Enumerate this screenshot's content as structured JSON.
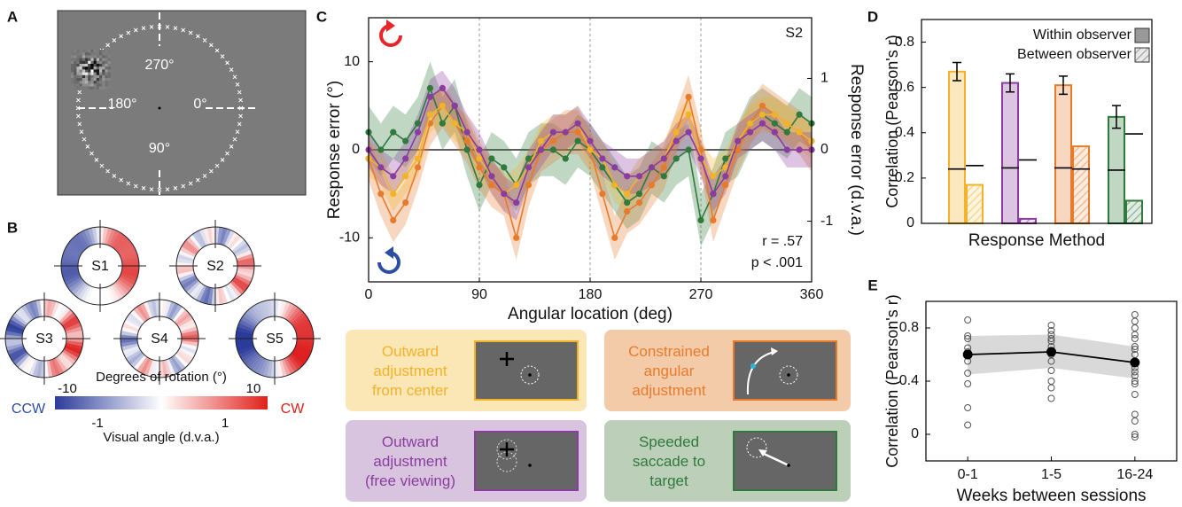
{
  "panel_labels": [
    "A",
    "B",
    "C",
    "D",
    "E"
  ],
  "stimulus": {
    "angle_labels": [
      "270°",
      "180°",
      "0°",
      "90°"
    ]
  },
  "maps": {
    "subjects": [
      "S1",
      "S2",
      "S3",
      "S4",
      "S5"
    ],
    "colorbar": {
      "title": "Degrees of rotation (°)",
      "ticks": [
        -10,
        10
      ],
      "left_label": "CCW",
      "right_label": "CW",
      "ticks2": [
        -1,
        1
      ],
      "label2": "Visual angle (d.v.a.)"
    }
  },
  "chart_data": [
    {
      "type": "line",
      "subject": "S2",
      "annotations": [
        "r = .57",
        "p < .001"
      ],
      "xlabel": "Angular location (deg)",
      "ylabel": "Response error (°)",
      "y2label": "Response error (d.v.a.)",
      "x": [
        0,
        10,
        20,
        30,
        40,
        50,
        60,
        70,
        80,
        90,
        100,
        110,
        120,
        130,
        140,
        150,
        160,
        170,
        180,
        190,
        200,
        210,
        220,
        230,
        240,
        250,
        260,
        270,
        280,
        290,
        300,
        310,
        320,
        330,
        340,
        350,
        360
      ],
      "xlim": [
        0,
        360
      ],
      "xticks": [
        0,
        90,
        180,
        270,
        360
      ],
      "ylim": [
        -15,
        15
      ],
      "yticks": [
        -10,
        0,
        10
      ],
      "y2lim": [
        -1.85,
        1.85
      ],
      "y2ticks": [
        -1,
        0,
        1
      ],
      "grid_x": true,
      "zero_line": true,
      "series": [
        {
          "name": "Outward adjustment from center",
          "color": "#f2b22a",
          "error": 2,
          "values": [
            -1,
            -2,
            -5,
            -3,
            -1,
            4,
            5,
            3,
            2,
            -1,
            -3,
            -5,
            -4,
            -2,
            1,
            2,
            2,
            3,
            0,
            -1,
            -4,
            -5,
            -3,
            -2,
            -1,
            2,
            4,
            -1,
            -3,
            -2,
            1,
            3,
            4,
            4,
            3,
            2,
            1
          ]
        },
        {
          "name": "Constrained angular adjustment",
          "color": "#e67c2b",
          "error": 2.5,
          "values": [
            -1,
            -5,
            -8,
            -6,
            -2,
            3,
            5,
            3,
            1,
            -2,
            -4,
            -5,
            -10,
            -4,
            0,
            1,
            2,
            2,
            0,
            -5,
            -10,
            -7,
            -6,
            -4,
            -2,
            2,
            6,
            0,
            -8,
            -4,
            0,
            3,
            5,
            4,
            3,
            2,
            0
          ]
        },
        {
          "name": "Outward adjustment (free viewing)",
          "color": "#8a3d9e",
          "error": 2,
          "values": [
            0,
            -2,
            -3,
            -1,
            2,
            6,
            7,
            5,
            2,
            0,
            -3,
            -5,
            -6,
            -2,
            0,
            2,
            2,
            3,
            1,
            -1,
            -2,
            -3,
            -3,
            -2,
            -1,
            1,
            2,
            -1,
            -5,
            -3,
            1,
            2,
            3,
            2,
            0,
            0,
            0
          ]
        },
        {
          "name": "Speeded saccade to target",
          "color": "#2f7a3c",
          "error": 3,
          "values": [
            2,
            0,
            2,
            1,
            3,
            7,
            3,
            5,
            0,
            -4,
            -1,
            -2,
            -4,
            -1,
            0,
            0,
            -1,
            1,
            0,
            -2,
            -4,
            -6,
            -5,
            -2,
            -3,
            -1,
            0,
            -8,
            -5,
            -1,
            0,
            3,
            4,
            3,
            2,
            4,
            3
          ]
        }
      ]
    },
    {
      "type": "bar",
      "xlabel": "Response Method",
      "ylabel": "Correlation (Pearson's r)",
      "categories": [
        null,
        null,
        null,
        null
      ],
      "category_colors": [
        "#f2b22a",
        "#8a3d9e",
        "#e67c2b",
        "#2f7a3c"
      ],
      "ylim": [
        0,
        0.9
      ],
      "yticks": [
        0,
        0.2,
        0.4,
        0.6,
        0.8
      ],
      "legend": "top-right",
      "series": [
        {
          "name": "Within observer",
          "color": "#999999",
          "pattern": "solid",
          "values": [
            0.67,
            0.62,
            0.61,
            0.47
          ],
          "error": [
            0.04,
            0.04,
            0.04,
            0.05
          ],
          "reference": [
            0.24,
            0.245,
            0.245,
            0.235
          ]
        },
        {
          "name": "Between observer",
          "color": "#999999",
          "pattern": "hatched",
          "values": [
            0.17,
            0.02,
            0.34,
            0.1
          ],
          "reference": [
            0.255,
            0.28,
            0.24,
            0.395
          ]
        }
      ]
    },
    {
      "type": "line",
      "xlabel": "Weeks between sessions",
      "ylabel": "Correlation (Pearson's r)",
      "categories": [
        "0-1",
        "1-5",
        "16-24"
      ],
      "ylim": [
        -0.2,
        1.0
      ],
      "yticks": [
        0,
        0.4,
        0.8
      ],
      "series": [
        {
          "color": "#000000",
          "values": [
            0.6,
            0.62,
            0.54
          ],
          "band_lower": [
            0.45,
            0.5,
            0.42
          ],
          "band_upper": [
            0.74,
            0.75,
            0.66
          ]
        }
      ],
      "points": [
        [
          0.86,
          0.74,
          0.72,
          0.65,
          0.62,
          0.55,
          0.46,
          0.38,
          0.2,
          0.07
        ],
        [
          0.82,
          0.78,
          0.75,
          0.72,
          0.7,
          0.66,
          0.63,
          0.6,
          0.55,
          0.48,
          0.4,
          0.35,
          0.27
        ],
        [
          0.9,
          0.85,
          0.8,
          0.75,
          0.72,
          0.66,
          0.64,
          0.6,
          0.55,
          0.5,
          0.47,
          0.44,
          0.4,
          0.38,
          0.3,
          0.15,
          0.1,
          0.0,
          -0.02
        ]
      ]
    }
  ]
}
